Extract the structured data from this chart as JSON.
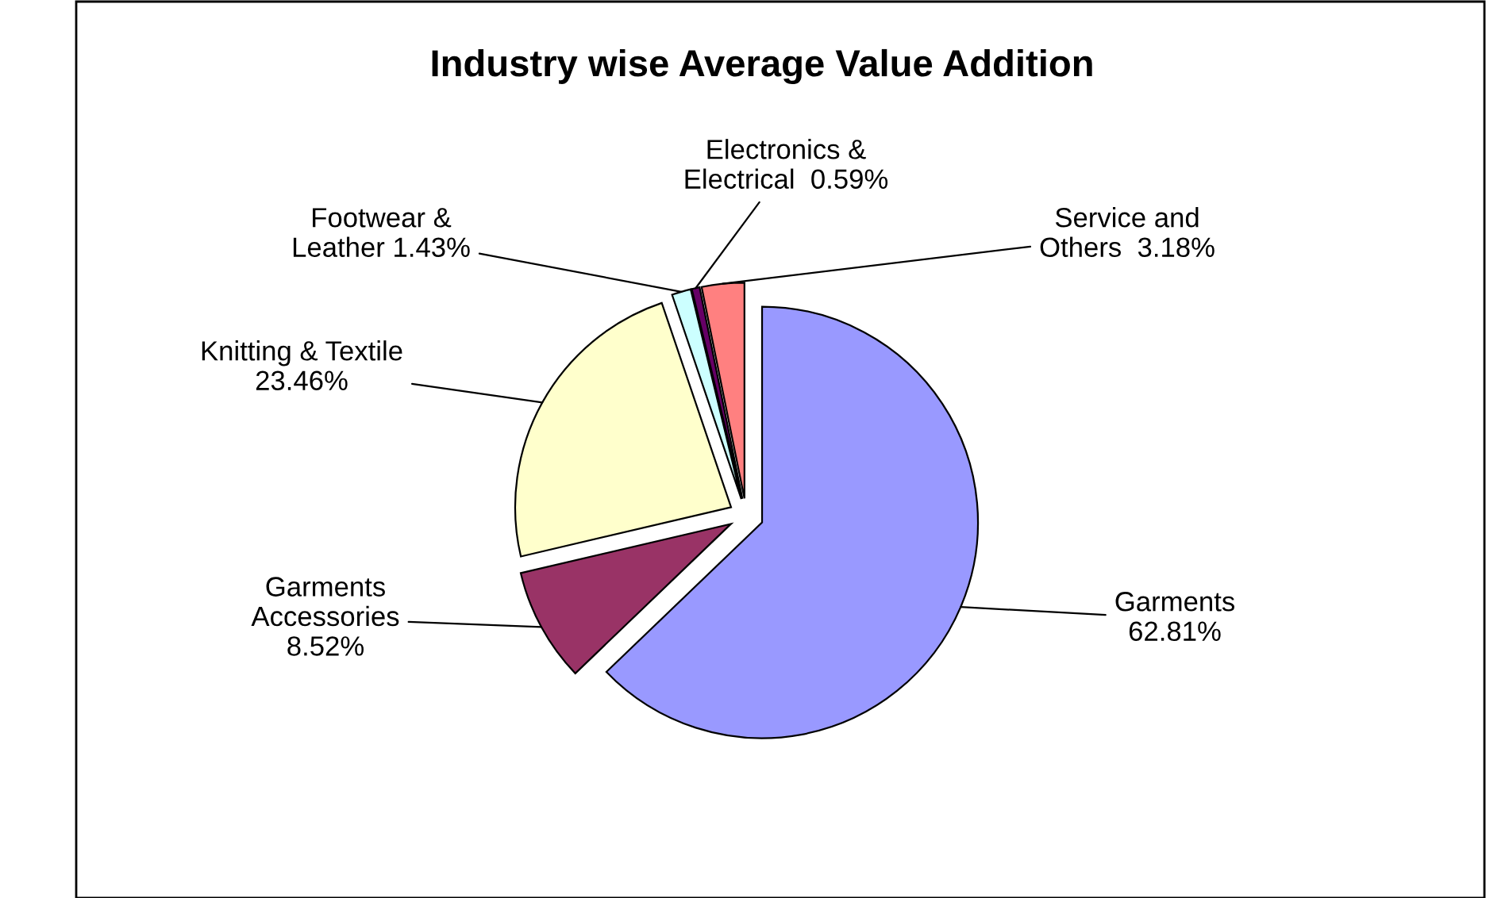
{
  "chart_data": {
    "type": "pie",
    "title": "Industry wise Average Value Addition",
    "categories": [
      "Garments",
      "Garments\nAccessories",
      "Knitting & Textile",
      "Footwear &\nLeather",
      "Electronics &\nElectrical",
      "Service and\nOthers"
    ],
    "values": [
      62.81,
      8.52,
      23.46,
      1.43,
      0.59,
      3.18
    ],
    "value_labels": [
      "62.81%",
      "8.52%",
      "23.46%",
      "1.43%",
      "0.59%",
      "3.18%"
    ],
    "colors": [
      "#9999ff",
      "#993366",
      "#ffffcc",
      "#ccffff",
      "#660066",
      "#ff8080"
    ],
    "legend": false
  }
}
